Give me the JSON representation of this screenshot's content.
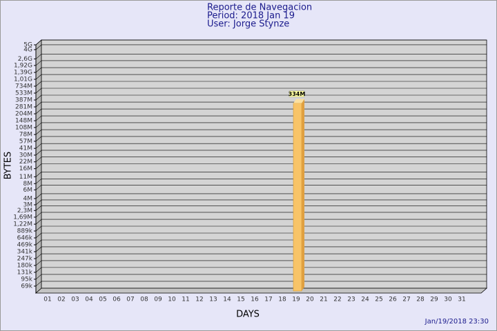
{
  "chart_data": {
    "type": "bar",
    "title": "Reporte de Navegacion",
    "subtitle": [
      "Period: 2018 Jan 19",
      "User: Jorge Stynze"
    ],
    "ylabel": "BYTES",
    "xlabel": "DAYS",
    "timestamp": "Jan/19/2018 23:30",
    "categories": [
      "01",
      "02",
      "03",
      "04",
      "05",
      "06",
      "07",
      "08",
      "09",
      "10",
      "11",
      "12",
      "13",
      "14",
      "15",
      "16",
      "17",
      "18",
      "19",
      "20",
      "21",
      "22",
      "23",
      "24",
      "25",
      "26",
      "27",
      "28",
      "29",
      "30",
      "31"
    ],
    "values": [
      null,
      null,
      null,
      null,
      null,
      null,
      null,
      null,
      null,
      null,
      null,
      null,
      null,
      null,
      null,
      null,
      null,
      null,
      334000000,
      null,
      null,
      null,
      null,
      null,
      null,
      null,
      null,
      null,
      null,
      null,
      null
    ],
    "value_labels": [
      null,
      null,
      null,
      null,
      null,
      null,
      null,
      null,
      null,
      null,
      null,
      null,
      null,
      null,
      null,
      null,
      null,
      null,
      "334M",
      null,
      null,
      null,
      null,
      null,
      null,
      null,
      null,
      null,
      null,
      null,
      null
    ],
    "color": "#f8c468",
    "log_scale": true,
    "grid": true,
    "ylim": [
      50000,
      5000000000
    ],
    "yticks": [
      {
        "value": 69000,
        "label": "69k"
      },
      {
        "value": 95000,
        "label": "95k"
      },
      {
        "value": 131000,
        "label": "131k"
      },
      {
        "value": 180000,
        "label": "180k"
      },
      {
        "value": 247000,
        "label": "247k"
      },
      {
        "value": 341000,
        "label": "341k"
      },
      {
        "value": 469000,
        "label": "469k"
      },
      {
        "value": 646000,
        "label": "646k"
      },
      {
        "value": 889000,
        "label": "889k"
      },
      {
        "value": 1220000,
        "label": "1,22M"
      },
      {
        "value": 1690000,
        "label": "1,69M"
      },
      {
        "value": 2300000,
        "label": "2,3M"
      },
      {
        "value": 3000000,
        "label": "3M"
      },
      {
        "value": 4000000,
        "label": "4M"
      },
      {
        "value": 6000000,
        "label": "6M"
      },
      {
        "value": 8000000,
        "label": "8M"
      },
      {
        "value": 11000000,
        "label": "11M"
      },
      {
        "value": 16000000,
        "label": "16M"
      },
      {
        "value": 22000000,
        "label": "22M"
      },
      {
        "value": 30000000,
        "label": "30M"
      },
      {
        "value": 41000000,
        "label": "41M"
      },
      {
        "value": 57000000,
        "label": "57M"
      },
      {
        "value": 78000000,
        "label": "78M"
      },
      {
        "value": 108000000,
        "label": "108M"
      },
      {
        "value": 148000000,
        "label": "148M"
      },
      {
        "value": 204000000,
        "label": "204M"
      },
      {
        "value": 281000000,
        "label": "281M"
      },
      {
        "value": 387000000,
        "label": "387M"
      },
      {
        "value": 533000000,
        "label": "533M"
      },
      {
        "value": 734000000,
        "label": "734M"
      },
      {
        "value": 1010000000,
        "label": "1,01G"
      },
      {
        "value": 1390000000,
        "label": "1,39G"
      },
      {
        "value": 1920000000,
        "label": "1,92G"
      },
      {
        "value": 2600000000,
        "label": "2,6G"
      },
      {
        "value": 4000000000,
        "label": "4G"
      },
      {
        "value": 5000000000,
        "label": "5G"
      }
    ]
  }
}
